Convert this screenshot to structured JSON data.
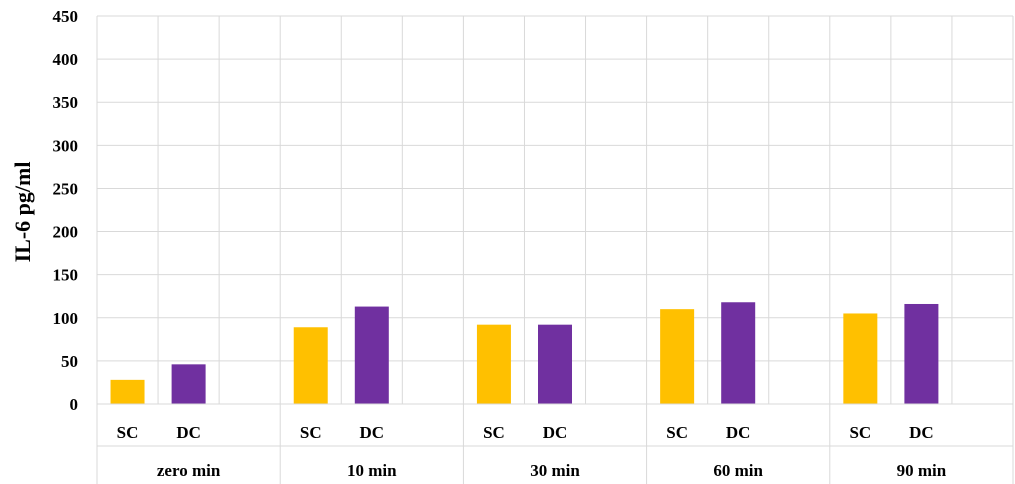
{
  "chart_data": {
    "type": "bar",
    "ylabel": "IL-6 pg/ml",
    "ylim": [
      0,
      450
    ],
    "yticks": [
      0,
      50,
      100,
      150,
      200,
      250,
      300,
      350,
      400,
      450
    ],
    "groups": [
      "zero min",
      "10 min",
      "30 min",
      "60 min",
      "90 min"
    ],
    "sublabels": [
      "SC",
      "DC"
    ],
    "grid": true,
    "series": [
      {
        "name": "SC",
        "color": "#ffc000",
        "values": [
          28,
          89,
          92,
          110,
          105
        ]
      },
      {
        "name": "DC",
        "color": "#7030a0",
        "values": [
          46,
          113,
          92,
          118,
          116
        ]
      }
    ]
  }
}
